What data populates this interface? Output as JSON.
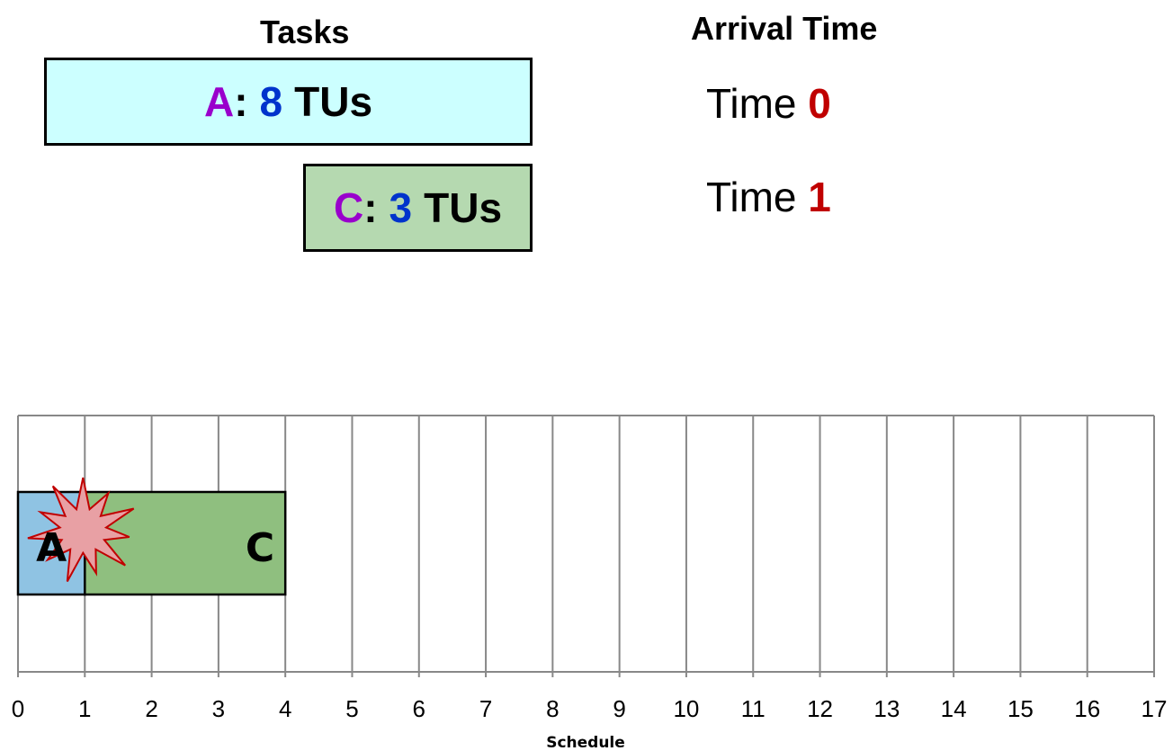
{
  "headings": {
    "tasks": "Tasks",
    "arrival_time": "Arrival Time"
  },
  "tasks": [
    {
      "name": "A",
      "separator": ":",
      "duration": "8",
      "unit": "TUs",
      "fill": "#ccffff"
    },
    {
      "name": "C",
      "separator": ":",
      "duration": "3",
      "unit": "TUs",
      "fill": "#b5d9b0"
    }
  ],
  "arrivals": [
    {
      "prefix": "Time",
      "value": "0"
    },
    {
      "prefix": "Time",
      "value": "1"
    }
  ],
  "colors": {
    "task_name": "#9900cc",
    "task_duration": "#0033cc",
    "arrival_value": "#c00000",
    "gantt_a_fill": "#8fc3e3",
    "gantt_c_fill": "#8fbf7f",
    "burst_fill": "#e8a0a4",
    "burst_stroke": "#c00000",
    "grid": "#888888"
  },
  "chart_data": {
    "type": "gantt",
    "xlabel": "Schedule",
    "xlim": [
      0,
      17
    ],
    "x_ticks": [
      "0",
      "1",
      "2",
      "3",
      "4",
      "5",
      "6",
      "7",
      "8",
      "9",
      "10",
      "11",
      "12",
      "13",
      "14",
      "15",
      "16",
      "17"
    ],
    "bars": [
      {
        "label": "A",
        "start": 0,
        "end": 1
      },
      {
        "label": "C",
        "start": 1,
        "end": 4
      }
    ],
    "marker": {
      "type": "burst",
      "at": 1
    }
  }
}
